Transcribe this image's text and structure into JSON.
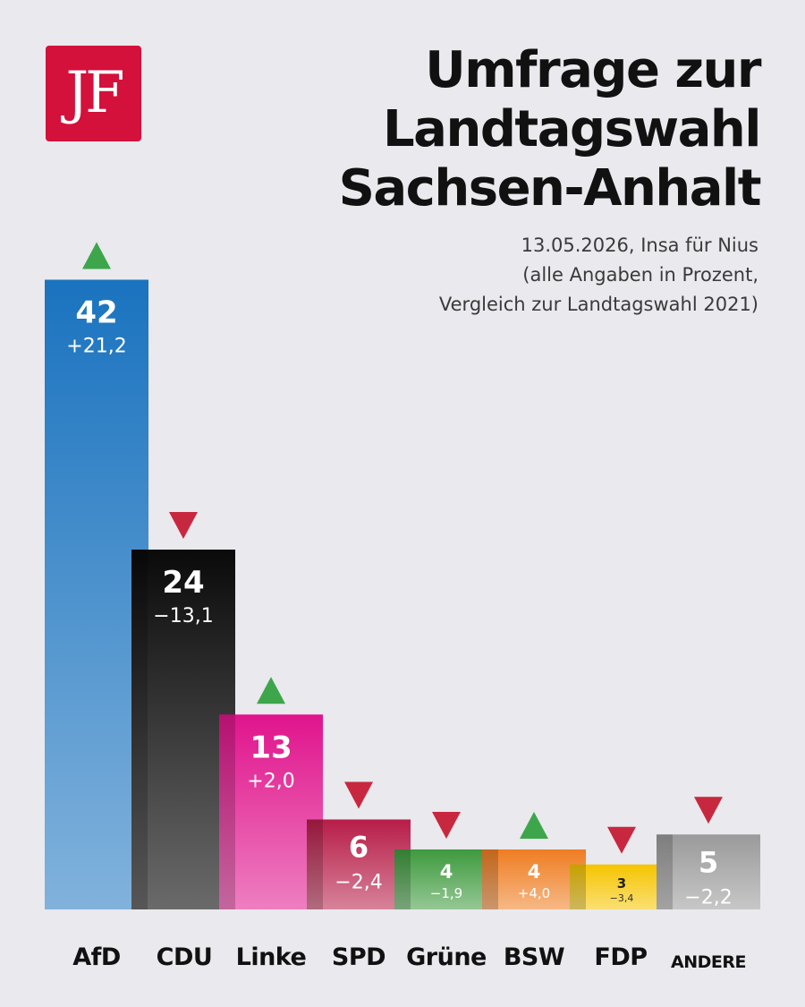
{
  "logo": {
    "text": "JF",
    "color": "#d3113b"
  },
  "title_lines": [
    "Umfrage zur",
    "Landtagswahl",
    "Sachsen-Anhalt"
  ],
  "subtitle_lines": [
    "13.05.2026, Insa für Nius",
    "(alle Angaben in Prozent,",
    "Vergleich zur Landtagswahl 2021)"
  ],
  "chart_data": {
    "type": "bar",
    "title": "Umfrage zur Landtagswahl Sachsen-Anhalt",
    "subtitle": "13.05.2026, Insa für Nius (alle Angaben in Prozent, Vergleich zur Landtagswahl 2021)",
    "grid": false,
    "categories": [
      "AfD",
      "CDU",
      "Linke",
      "SPD",
      "Grüne",
      "BSW",
      "FDP",
      "ANDERE"
    ],
    "values": [
      42,
      24,
      13,
      6,
      4,
      4,
      3,
      5
    ],
    "value_labels": [
      "42",
      "24",
      "13",
      "6",
      "4",
      "4",
      "3",
      "5"
    ],
    "changes": [
      21.2,
      -13.1,
      2.0,
      -2.4,
      -1.9,
      4.0,
      -3.4,
      -2.2
    ],
    "change_labels": [
      "+21,2",
      "−13,1",
      "+2,0",
      "−2,4",
      "−1,9",
      "+4,0",
      "−3,4",
      "−2,2"
    ],
    "colors": [
      "#1a73bf",
      "#1a1a1a",
      "#e0148c",
      "#b71d48",
      "#3e9a3e",
      "#ef7d22",
      "#f5c400",
      "#9a9a9a"
    ],
    "arrow_colors": {
      "up": "#3da64a",
      "down": "#c8283f"
    }
  }
}
